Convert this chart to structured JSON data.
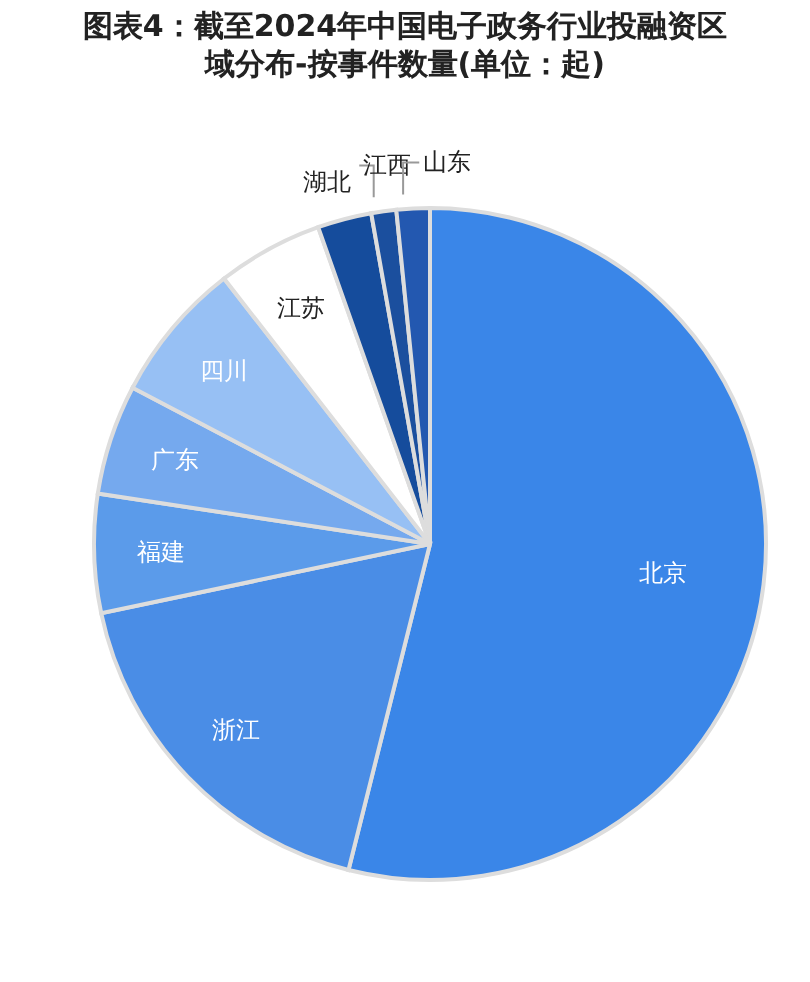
{
  "chart_data": {
    "type": "pie",
    "title": "图表4：截至2024年中国电子政务行业投融资区域分布-按事件数量(单位：起)",
    "categories": [
      "北京",
      "浙江",
      "福建",
      "广东",
      "四川",
      "江苏",
      "湖北",
      "江西",
      "山东"
    ],
    "values": [
      53.9,
      17.8,
      5.7,
      5.3,
      6.8,
      5.1,
      2.6,
      1.2,
      1.6
    ],
    "colors": [
      "#3a86e8",
      "#4a8de6",
      "#5b9bea",
      "#75a9ee",
      "#97c0f4",
      "#ffffff",
      "#154c9c",
      "#1b4f9e",
      "#2358b0"
    ],
    "legend": false
  }
}
